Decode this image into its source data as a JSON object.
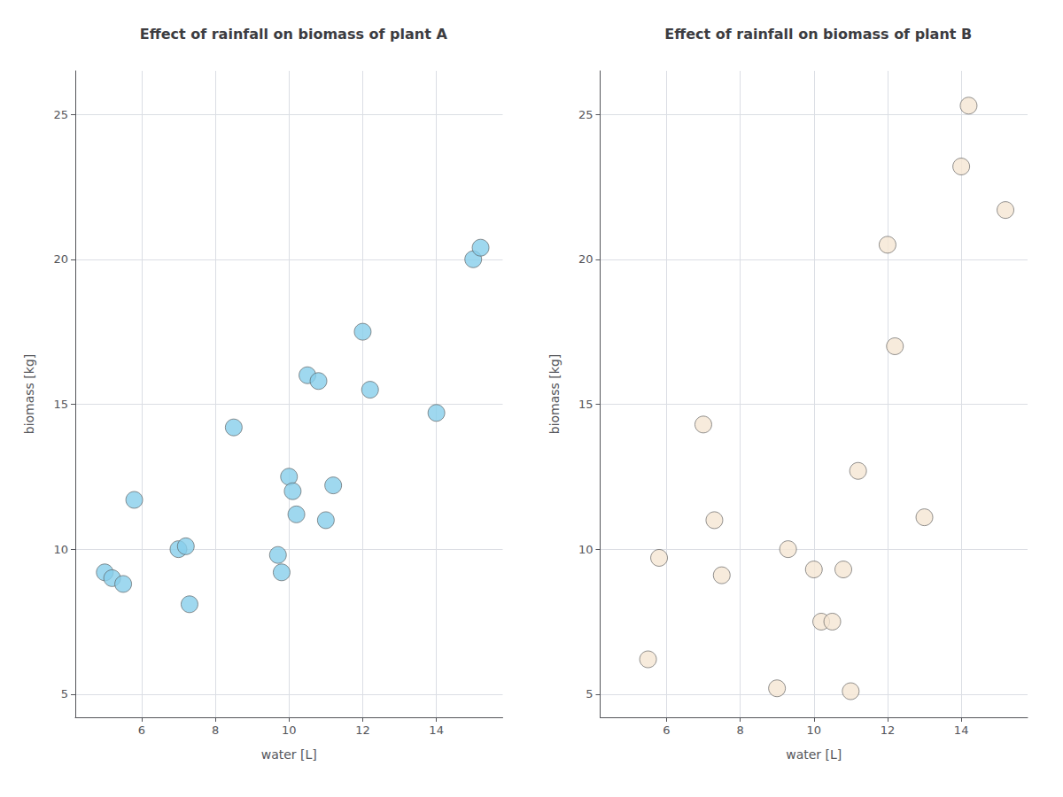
{
  "chart_data": [
    {
      "type": "scatter",
      "title": "Effect of rainfall on biomass of plant A",
      "xlabel": "water [L]",
      "ylabel": "biomass [kg]",
      "x": [
        5.0,
        5.2,
        5.5,
        5.8,
        7.0,
        7.2,
        7.3,
        8.5,
        9.7,
        9.8,
        10.0,
        10.1,
        10.2,
        10.5,
        10.8,
        11.0,
        11.2,
        12.0,
        12.2,
        14.0,
        15.0,
        15.2
      ],
      "values": [
        9.2,
        9.0,
        8.8,
        11.7,
        10.0,
        10.1,
        8.1,
        14.2,
        9.8,
        9.2,
        12.5,
        12.0,
        11.2,
        16.0,
        15.8,
        11.0,
        12.2,
        17.5,
        15.5,
        14.7,
        20.0,
        20.4
      ],
      "color": "#87CEEB",
      "xlim": [
        4.2,
        15.8
      ],
      "ylim": [
        4.2,
        26.5
      ],
      "xticks": [
        6,
        8,
        10,
        12,
        14
      ],
      "yticks": [
        5,
        10,
        15,
        20,
        25
      ],
      "grid": true
    },
    {
      "type": "scatter",
      "title": "Effect of rainfall on biomass of plant B",
      "xlabel": "water [L]",
      "ylabel": "biomass [kg]",
      "x": [
        5.5,
        5.8,
        7.0,
        7.3,
        7.5,
        9.0,
        9.3,
        10.0,
        10.2,
        10.5,
        10.8,
        11.0,
        11.2,
        12.0,
        12.2,
        13.0,
        14.0,
        14.2,
        15.2
      ],
      "values": [
        6.2,
        9.7,
        14.3,
        11.0,
        9.1,
        5.2,
        10.0,
        9.3,
        7.5,
        7.5,
        9.3,
        5.1,
        12.7,
        20.5,
        17.0,
        11.1,
        23.2,
        25.3,
        21.7
      ],
      "color": "#F5E6D3",
      "xlim": [
        4.2,
        15.8
      ],
      "ylim": [
        4.2,
        26.5
      ],
      "xticks": [
        6,
        8,
        10,
        12,
        14
      ],
      "yticks": [
        5,
        10,
        15,
        20,
        25
      ],
      "grid": true
    }
  ]
}
